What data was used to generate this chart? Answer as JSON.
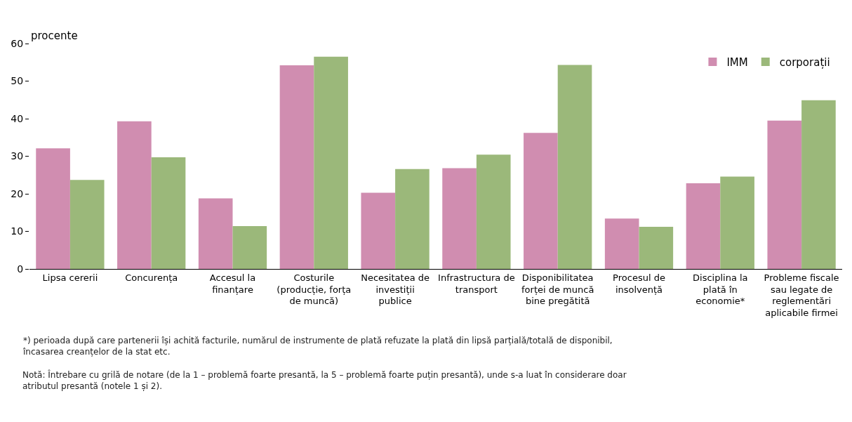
{
  "chart_data": {
    "type": "bar",
    "ylabel": "procente",
    "categories": [
      "Lipsa cererii",
      "Concurența",
      "Accesul la finanțare",
      "Costurile (producție, forța de muncă)",
      "Necesitatea de investiții publice",
      "Infrastructura de transport",
      "Disponibilitatea forței de muncă bine pregătită",
      "Procesul de insolvență",
      "Disciplina la plată în economie*",
      "Probleme fiscale sau legate de reglementări aplicabile firmei"
    ],
    "series": [
      {
        "name": "IMM",
        "color": "#d08db0",
        "values": [
          32.1,
          39.3,
          18.8,
          54.2,
          20.3,
          26.8,
          36.2,
          13.4,
          22.8,
          39.5
        ]
      },
      {
        "name": "corporații",
        "color": "#9bb87a",
        "values": [
          23.7,
          29.7,
          11.4,
          56.5,
          26.6,
          30.4,
          54.3,
          11.2,
          24.6,
          44.9
        ]
      }
    ],
    "ylim": [
      0,
      60
    ],
    "yticks": [
      0,
      10,
      20,
      30,
      40,
      50,
      60
    ],
    "grid": false,
    "legend": "top right",
    "annotations": [
      "*) perioada după care partenerii își achită facturile, numărul de instrumente de plată refuzate la plată din lipsă parțială/totală de disponibil, încasarea creanțelor de la stat etc.",
      "Notă: Întrebare cu grilă de notare (de la 1 – problemă foarte presantă, la 5 – problemă foarte puțin presantă), unde s-a luat în considerare doar atributul presantă (notele 1 și 2)."
    ]
  }
}
